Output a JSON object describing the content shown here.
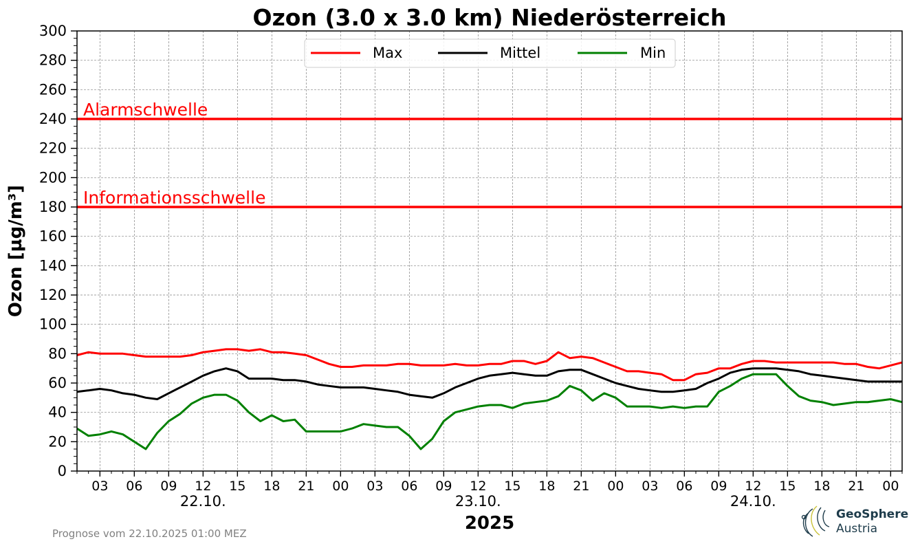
{
  "chart_data": {
    "type": "line",
    "title": "Ozon (3.0 x 3.0 km) Niederösterreich",
    "ylabel": "Ozon [µg/m³]",
    "xlabel": "2025",
    "ylim": [
      0,
      300
    ],
    "yticks": [
      0,
      20,
      40,
      60,
      80,
      100,
      120,
      140,
      160,
      180,
      200,
      220,
      240,
      260,
      280,
      300
    ],
    "x_hour_start": 1,
    "x_hour_end": 73,
    "xticks": [
      {
        "h": 3,
        "label": "03"
      },
      {
        "h": 6,
        "label": "06"
      },
      {
        "h": 9,
        "label": "09"
      },
      {
        "h": 12,
        "label": "12"
      },
      {
        "h": 15,
        "label": "15"
      },
      {
        "h": 18,
        "label": "18"
      },
      {
        "h": 21,
        "label": "21"
      },
      {
        "h": 24,
        "label": "00"
      },
      {
        "h": 27,
        "label": "03"
      },
      {
        "h": 30,
        "label": "06"
      },
      {
        "h": 33,
        "label": "09"
      },
      {
        "h": 36,
        "label": "12"
      },
      {
        "h": 39,
        "label": "15"
      },
      {
        "h": 42,
        "label": "18"
      },
      {
        "h": 45,
        "label": "21"
      },
      {
        "h": 48,
        "label": "00"
      },
      {
        "h": 51,
        "label": "03"
      },
      {
        "h": 54,
        "label": "06"
      },
      {
        "h": 57,
        "label": "09"
      },
      {
        "h": 60,
        "label": "12"
      },
      {
        "h": 63,
        "label": "15"
      },
      {
        "h": 66,
        "label": "18"
      },
      {
        "h": 69,
        "label": "21"
      },
      {
        "h": 72,
        "label": "00"
      }
    ],
    "date_labels": [
      {
        "h": 12,
        "label": "22.10."
      },
      {
        "h": 36,
        "label": "23.10."
      },
      {
        "h": 60,
        "label": "24.10."
      }
    ],
    "thresholds": [
      {
        "label": "Alarmschwelle",
        "value": 240,
        "color": "#ff0000"
      },
      {
        "label": "Informationsschwelle",
        "value": 180,
        "color": "#ff0000"
      }
    ],
    "legend_position": "top-center",
    "grid": true,
    "series": [
      {
        "name": "Max",
        "color": "#ff0000",
        "values": [
          79,
          81,
          80,
          80,
          80,
          79,
          78,
          78,
          78,
          78,
          79,
          81,
          82,
          83,
          83,
          82,
          83,
          81,
          81,
          80,
          79,
          76,
          73,
          71,
          71,
          72,
          72,
          72,
          73,
          73,
          72,
          72,
          72,
          73,
          72,
          72,
          73,
          73,
          75,
          75,
          73,
          75,
          81,
          77,
          78,
          77,
          74,
          71,
          68,
          68,
          67,
          66,
          62,
          62,
          66,
          67,
          70,
          70,
          73,
          75,
          75,
          74,
          74,
          74,
          74,
          74,
          74,
          73,
          73,
          71,
          70,
          72,
          74
        ]
      },
      {
        "name": "Mittel",
        "color": "#000000",
        "values": [
          54,
          55,
          56,
          55,
          53,
          52,
          50,
          49,
          53,
          57,
          61,
          65,
          68,
          70,
          68,
          63,
          63,
          63,
          62,
          62,
          61,
          59,
          58,
          57,
          57,
          57,
          56,
          55,
          54,
          52,
          51,
          50,
          53,
          57,
          60,
          63,
          65,
          66,
          67,
          66,
          65,
          65,
          68,
          69,
          69,
          66,
          63,
          60,
          58,
          56,
          55,
          54,
          54,
          55,
          56,
          60,
          63,
          67,
          69,
          70,
          70,
          70,
          69,
          68,
          66,
          65,
          64,
          63,
          62,
          61,
          61,
          61,
          61
        ]
      },
      {
        "name": "Min",
        "color": "#008000",
        "values": [
          29,
          24,
          25,
          27,
          25,
          20,
          15,
          26,
          34,
          39,
          46,
          50,
          52,
          52,
          48,
          40,
          34,
          38,
          34,
          35,
          27,
          27,
          27,
          27,
          29,
          32,
          31,
          30,
          30,
          24,
          15,
          22,
          34,
          40,
          42,
          44,
          45,
          45,
          43,
          46,
          47,
          48,
          51,
          58,
          55,
          48,
          53,
          50,
          44,
          44,
          44,
          43,
          44,
          43,
          44,
          44,
          54,
          58,
          63,
          66,
          66,
          66,
          58,
          51,
          48,
          47,
          45,
          46,
          47,
          47,
          48,
          49,
          47
        ]
      }
    ]
  },
  "footer": {
    "forecast_note": "Prognose vom 22.10.2025 01:00 MEZ",
    "logo_line1": "GeoSphere",
    "logo_line2": "Austria"
  }
}
